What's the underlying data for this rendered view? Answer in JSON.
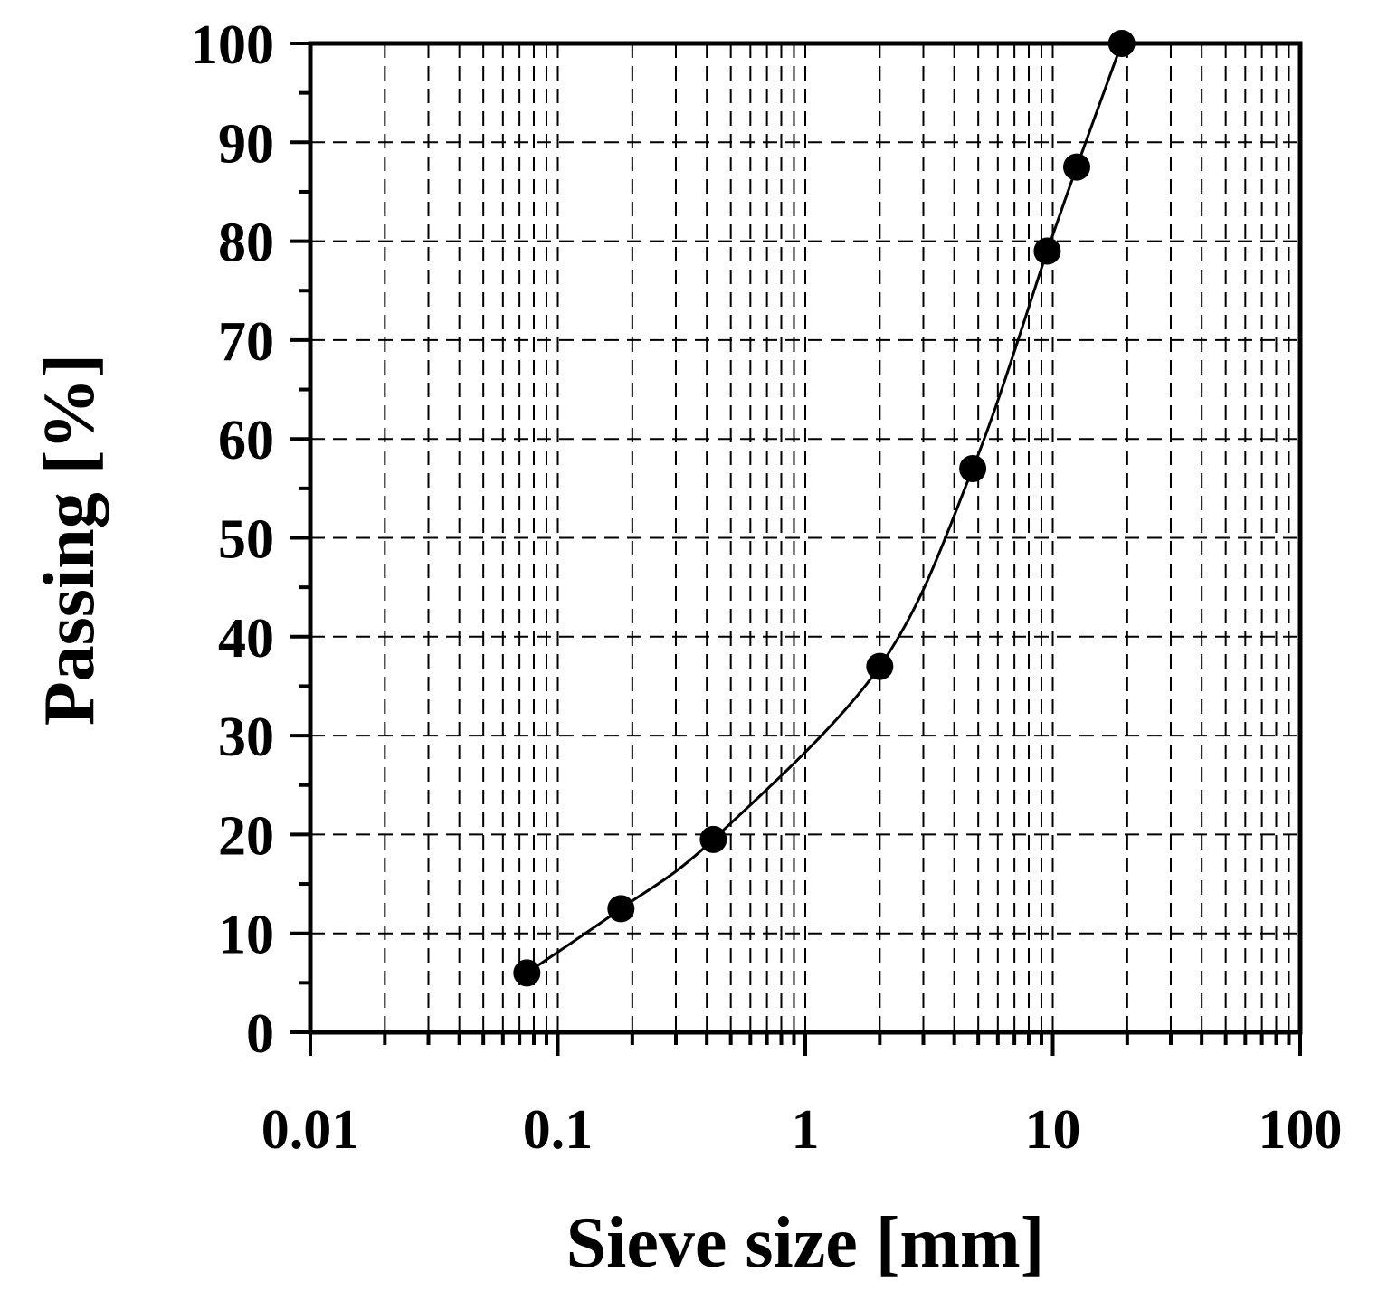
{
  "chart_data": {
    "type": "line",
    "title": "",
    "xlabel": "Sieve size [mm]",
    "ylabel": "Passing [%]",
    "x_scale": "log",
    "xlim": [
      0.01,
      100
    ],
    "ylim": [
      0,
      100
    ],
    "x_ticks": [
      0.01,
      0.1,
      1,
      10,
      100
    ],
    "x_tick_labels": [
      "0.01",
      "0.1",
      "1",
      "10",
      "100"
    ],
    "y_ticks": [
      0,
      10,
      20,
      30,
      40,
      50,
      60,
      70,
      80,
      90,
      100
    ],
    "y_tick_labels": [
      "0",
      "10",
      "20",
      "30",
      "40",
      "50",
      "60",
      "70",
      "80",
      "90",
      "100"
    ],
    "grid": true,
    "legend": "none",
    "series": [
      {
        "marker": "circle",
        "color": "#000000",
        "x": [
          0.075,
          0.18,
          0.425,
          2,
          4.75,
          9.5,
          12.5,
          19
        ],
        "y": [
          6,
          12.5,
          19.5,
          37,
          57,
          79,
          87.5,
          100
        ]
      }
    ]
  }
}
